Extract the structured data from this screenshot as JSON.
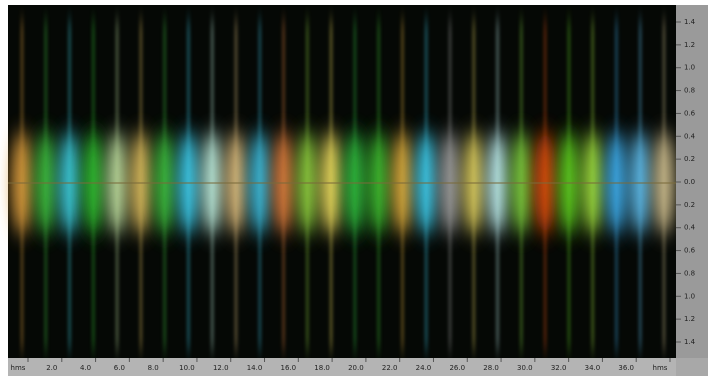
{
  "time_ruler": {
    "labels": [
      "hms",
      "2.0",
      "4.0",
      "6.0",
      "8.0",
      "10.0",
      "12.0",
      "14.0",
      "16.0",
      "18.0",
      "20.0",
      "22.0",
      "24.0",
      "26.0",
      "28.0",
      "30.0",
      "32.0",
      "34.0",
      "36.0",
      "hms"
    ]
  },
  "pan_ruler": {
    "labels": [
      "1.4",
      "1.2",
      "1.0",
      "0.8",
      "0.6",
      "0.4",
      "0.2",
      "0.0",
      "0.2",
      "0.4",
      "0.6",
      "0.8",
      "1.0",
      "1.2",
      "1.4"
    ]
  }
}
